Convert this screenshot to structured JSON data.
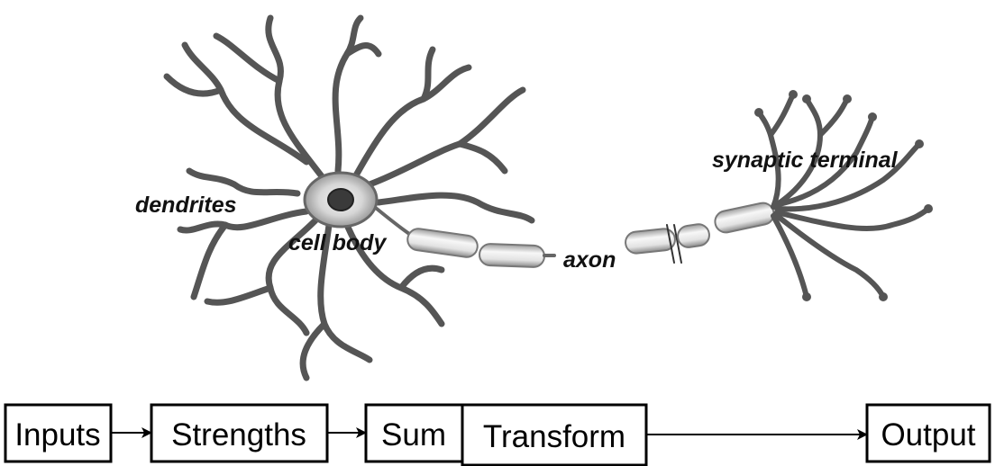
{
  "labels": {
    "dendrites": "dendrites",
    "cell_body": "cell body",
    "axon": "axon",
    "synaptic_terminal": "synaptic terminal"
  },
  "flow": {
    "inputs": "Inputs",
    "strengths": "Strengths",
    "sum": "Sum",
    "transform": "Transform",
    "output": "Output"
  }
}
